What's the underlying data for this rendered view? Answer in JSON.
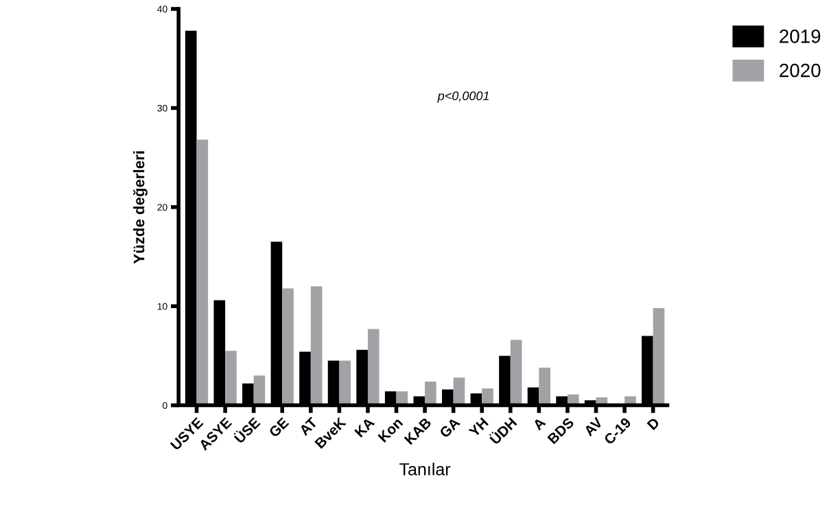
{
  "chart_data": {
    "type": "bar",
    "xlabel": "Tanılar",
    "ylabel": "Yüzde değerleri",
    "categories": [
      "USYE",
      "ASYE",
      "ÜSE",
      "GE",
      "AT",
      "BveK",
      "KA",
      "Kon",
      "KAB",
      "GA",
      "YH",
      "ÜDH",
      "A",
      "BDS",
      "AV",
      "C-19",
      "D"
    ],
    "series": [
      {
        "name": "2019",
        "color": "#000000",
        "values": [
          37.8,
          10.6,
          2.2,
          16.5,
          5.4,
          4.5,
          5.6,
          1.4,
          0.9,
          1.6,
          1.2,
          5.0,
          1.8,
          0.9,
          0.5,
          0,
          7.0
        ]
      },
      {
        "name": "2020",
        "color": "#a2a1a6",
        "values": [
          26.8,
          5.5,
          3.0,
          11.8,
          12.0,
          4.5,
          7.7,
          1.4,
          2.4,
          2.8,
          1.7,
          6.6,
          3.8,
          1.1,
          0.8,
          0.9,
          9.8
        ]
      }
    ],
    "ylim": [
      0,
      40
    ],
    "yticks": [
      0,
      10,
      20,
      30,
      40
    ],
    "grid": false,
    "legend": "top right",
    "annotations": [
      "p<0,0001"
    ]
  }
}
